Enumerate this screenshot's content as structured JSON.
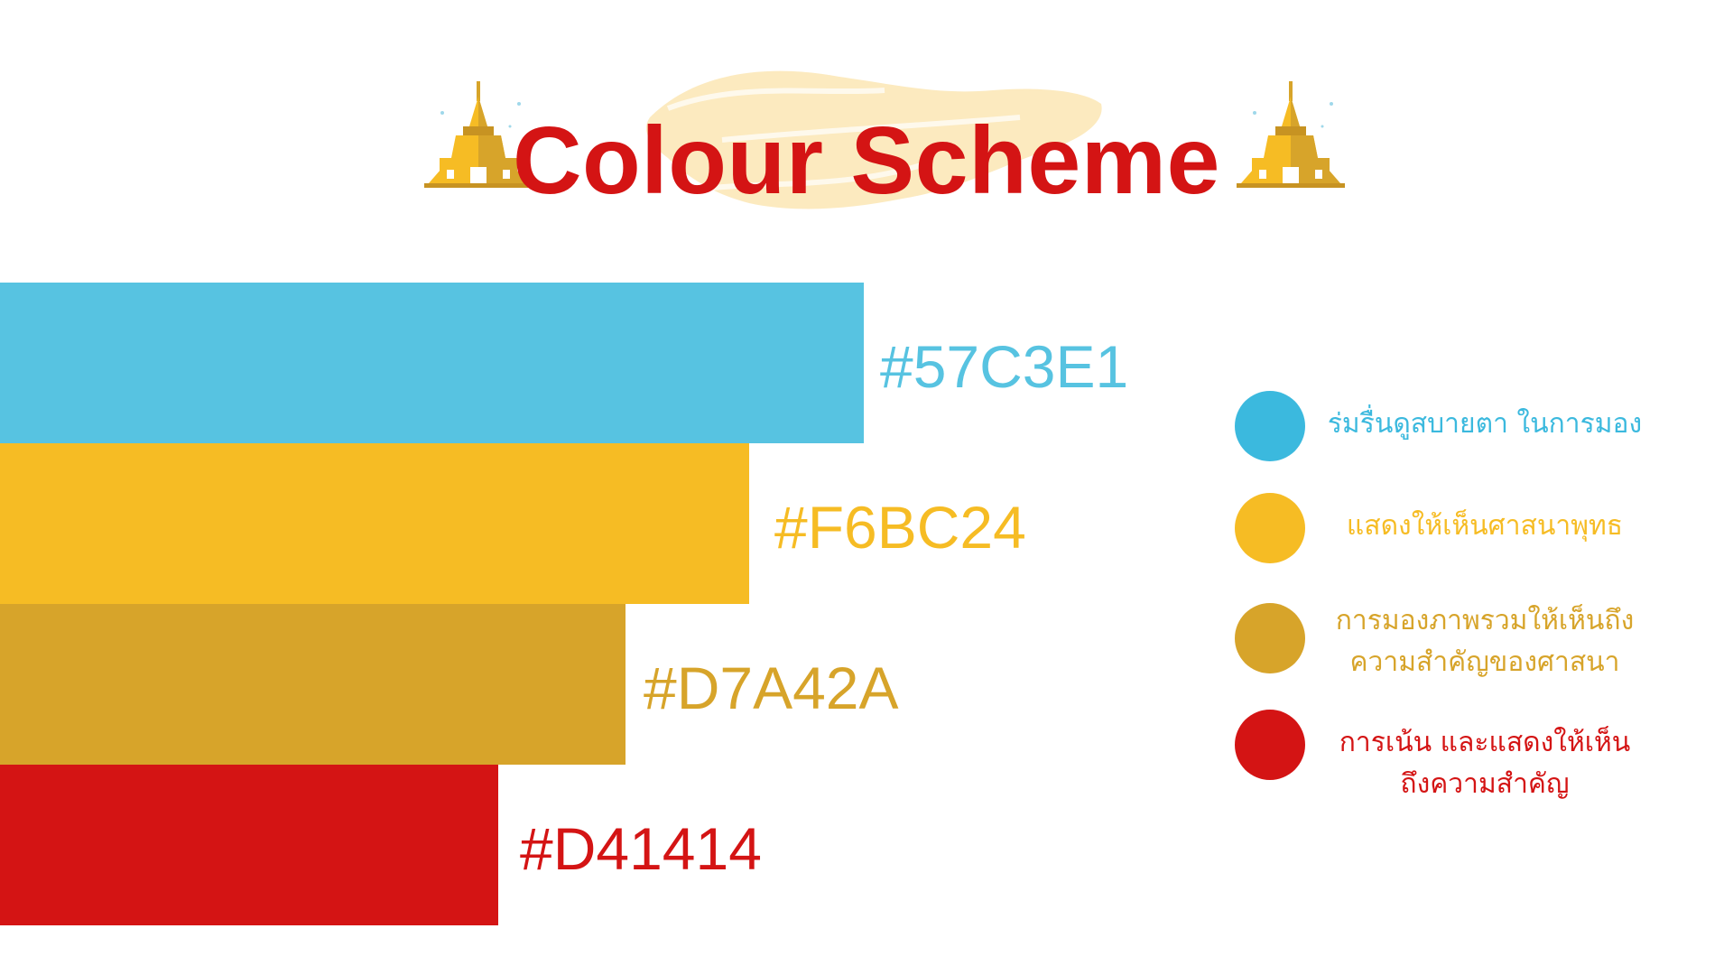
{
  "title": "Colour Scheme",
  "icons": {
    "left": "pagoda-icon",
    "right": "pagoda-icon"
  },
  "colors": {
    "blue": "#57C3E1",
    "yellow": "#F6BC24",
    "gold": "#D7A42A",
    "red": "#D41414",
    "brush": "#FBE6B4",
    "legend_blue_dot": "#3BB9DE"
  },
  "swatches": [
    {
      "hex": "#57C3E1",
      "color": "#57C3E1"
    },
    {
      "hex": "#F6BC24",
      "color": "#F6BC24"
    },
    {
      "hex": "#D7A42A",
      "color": "#D7A42A"
    },
    {
      "hex": "#D41414",
      "color": "#D41414"
    }
  ],
  "legend": [
    {
      "text": "ร่มรื่นดูสบายตา ในการมอง",
      "color": "#3BB9DE"
    },
    {
      "text": "แสดงให้เห็นศาสนาพุทธ",
      "color": "#F6BC24"
    },
    {
      "text": "การมองภาพรวมให้เห็นถึง\nความสำคัญของศาสนา",
      "color": "#D7A42A"
    },
    {
      "text": "การเน้น และแสดงให้เห็น\nถึงความสำคัญ",
      "color": "#D41414"
    }
  ]
}
